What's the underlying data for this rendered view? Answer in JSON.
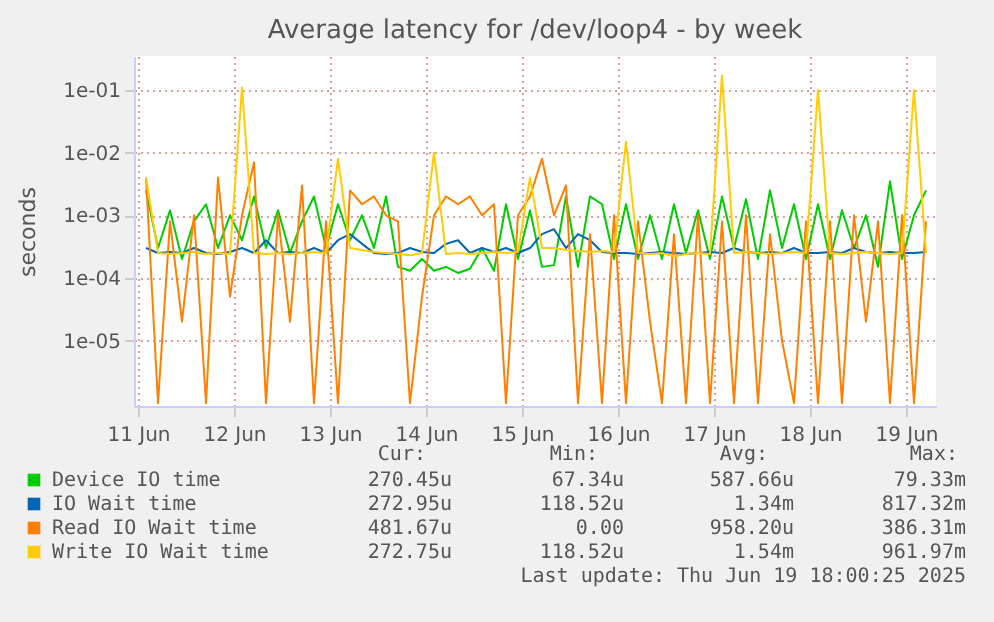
{
  "chart_data": {
    "type": "line",
    "title": "Average latency for /dev/loop4 - by week",
    "ylabel": "seconds",
    "log": true,
    "grid": true,
    "legend": "bottom",
    "line_style": "solid",
    "xlim": [
      "2025-06-11T11:00",
      "2025-06-19T19:30"
    ],
    "xticks": [
      {
        "value": "2025-06-11T12:00",
        "label": "11 Jun"
      },
      {
        "value": "2025-06-12T12:00",
        "label": "12 Jun"
      },
      {
        "value": "2025-06-13T12:00",
        "label": "13 Jun"
      },
      {
        "value": "2025-06-14T12:00",
        "label": "14 Jun"
      },
      {
        "value": "2025-06-15T12:00",
        "label": "15 Jun"
      },
      {
        "value": "2025-06-16T12:00",
        "label": "16 Jun"
      },
      {
        "value": "2025-06-17T12:00",
        "label": "17 Jun"
      },
      {
        "value": "2025-06-18T12:00",
        "label": "18 Jun"
      },
      {
        "value": "2025-06-19T12:00",
        "label": "19 Jun"
      }
    ],
    "ylim": [
      9e-07,
      0.35
    ],
    "yticks": [
      {
        "value": 1e-05,
        "label": "1e-05"
      },
      {
        "value": 0.0001,
        "label": "1e-04"
      },
      {
        "value": 0.001,
        "label": "1e-03"
      },
      {
        "value": 0.01,
        "label": "1e-02"
      },
      {
        "value": 0.1,
        "label": "1e-01"
      }
    ],
    "x": [
      "2025-06-11T14:00",
      "2025-06-11T17:00",
      "2025-06-11T20:00",
      "2025-06-11T23:00",
      "2025-06-12T02:00",
      "2025-06-12T05:00",
      "2025-06-12T08:00",
      "2025-06-12T11:00",
      "2025-06-12T14:00",
      "2025-06-12T17:00",
      "2025-06-12T20:00",
      "2025-06-12T23:00",
      "2025-06-13T02:00",
      "2025-06-13T05:00",
      "2025-06-13T08:00",
      "2025-06-13T11:00",
      "2025-06-13T14:00",
      "2025-06-13T17:00",
      "2025-06-13T20:00",
      "2025-06-13T23:00",
      "2025-06-14T02:00",
      "2025-06-14T05:00",
      "2025-06-14T08:00",
      "2025-06-14T11:00",
      "2025-06-14T14:00",
      "2025-06-14T17:00",
      "2025-06-14T20:00",
      "2025-06-14T23:00",
      "2025-06-15T02:00",
      "2025-06-15T05:00",
      "2025-06-15T08:00",
      "2025-06-15T11:00",
      "2025-06-15T14:00",
      "2025-06-15T17:00",
      "2025-06-15T20:00",
      "2025-06-15T23:00",
      "2025-06-16T02:00",
      "2025-06-16T05:00",
      "2025-06-16T08:00",
      "2025-06-16T11:00",
      "2025-06-16T14:00",
      "2025-06-16T17:00",
      "2025-06-16T20:00",
      "2025-06-16T23:00",
      "2025-06-17T02:00",
      "2025-06-17T05:00",
      "2025-06-17T08:00",
      "2025-06-17T11:00",
      "2025-06-17T14:00",
      "2025-06-17T17:00",
      "2025-06-17T20:00",
      "2025-06-17T23:00",
      "2025-06-18T02:00",
      "2025-06-18T05:00",
      "2025-06-18T08:00",
      "2025-06-18T11:00",
      "2025-06-18T14:00",
      "2025-06-18T17:00",
      "2025-06-18T20:00",
      "2025-06-18T23:00",
      "2025-06-19T02:00",
      "2025-06-19T05:00",
      "2025-06-19T08:00",
      "2025-06-19T11:00",
      "2025-06-19T14:00",
      "2025-06-19T17:00"
    ],
    "series": [
      {
        "name": "Device IO time",
        "color": "#00cc00",
        "values": [
          0.0025,
          0.0003,
          0.0012,
          0.0002,
          0.0008,
          0.0015,
          0.0003,
          0.001,
          0.0004,
          0.002,
          0.0003,
          0.0012,
          0.00025,
          0.0008,
          0.002,
          0.0003,
          0.0015,
          0.0004,
          0.001,
          0.0003,
          0.002,
          0.00015,
          0.00013,
          0.0002,
          0.00013,
          0.00015,
          0.00012,
          0.00014,
          0.0003,
          0.00013,
          0.0015,
          0.0002,
          0.0012,
          0.00015,
          0.00016,
          0.002,
          0.00015,
          0.002,
          0.0015,
          0.0002,
          0.0015,
          0.0002,
          0.001,
          0.0002,
          0.0015,
          0.00025,
          0.0012,
          0.0002,
          0.002,
          0.0003,
          0.0018,
          0.0002,
          0.0025,
          0.0003,
          0.0015,
          0.0002,
          0.0015,
          0.0002,
          0.0012,
          0.0003,
          0.001,
          0.00015,
          0.0035,
          0.0002,
          0.001,
          0.0025
        ]
      },
      {
        "name": "IO Wait time",
        "color": "#0066b3",
        "values": [
          0.0003,
          0.00025,
          0.00026,
          0.00025,
          0.0003,
          0.00025,
          0.00024,
          0.00026,
          0.0003,
          0.00025,
          0.0004,
          0.00025,
          0.00026,
          0.00025,
          0.0003,
          0.00025,
          0.0004,
          0.0005,
          0.00035,
          0.00025,
          0.00024,
          0.00025,
          0.0003,
          0.00026,
          0.00025,
          0.00035,
          0.0004,
          0.00025,
          0.0003,
          0.00026,
          0.0003,
          0.00025,
          0.0003,
          0.0005,
          0.0006,
          0.0003,
          0.0005,
          0.0004,
          0.00026,
          0.00025,
          0.00025,
          0.00024,
          0.00025,
          0.00026,
          0.00025,
          0.00024,
          0.00025,
          0.00026,
          0.00025,
          0.0003,
          0.00026,
          0.00025,
          0.00026,
          0.00025,
          0.0003,
          0.00025,
          0.00025,
          0.00026,
          0.00025,
          0.0003,
          0.00026,
          0.00025,
          0.00026,
          0.00025,
          0.00025,
          0.00026
        ]
      },
      {
        "name": "Read IO Wait time",
        "color": "#ff8000",
        "values": [
          0.004,
          1e-06,
          0.0008,
          2e-05,
          0.001,
          1e-06,
          0.004,
          5e-05,
          0.001,
          0.007,
          1e-06,
          0.001,
          2e-05,
          0.003,
          1e-06,
          0.0008,
          1e-06,
          0.0025,
          0.0015,
          0.002,
          0.001,
          0.0008,
          1e-06,
          5e-05,
          0.001,
          0.002,
          0.0015,
          0.002,
          0.001,
          0.0015,
          1e-06,
          0.001,
          0.002,
          0.008,
          0.001,
          0.003,
          1e-06,
          0.0005,
          1e-06,
          0.001,
          1e-06,
          0.0008,
          2e-05,
          1e-06,
          0.0005,
          1e-06,
          0.001,
          1e-06,
          0.0008,
          1e-06,
          0.001,
          1e-06,
          0.0005,
          1e-05,
          1e-06,
          0.0008,
          1e-06,
          0.0008,
          1e-06,
          0.001,
          2e-05,
          0.0008,
          1e-06,
          0.001,
          1e-06,
          0.0008
        ]
      },
      {
        "name": "Write IO Wait time",
        "color": "#ffcc00",
        "values": [
          0.004,
          0.00025,
          0.00024,
          0.00025,
          0.00026,
          0.00024,
          0.00025,
          0.00024,
          0.11,
          0.00025,
          0.00024,
          0.00025,
          0.00024,
          0.00025,
          0.00026,
          0.00025,
          0.008,
          0.0003,
          0.00028,
          0.00026,
          0.00025,
          0.00024,
          0.00023,
          0.00025,
          0.01,
          0.00024,
          0.00025,
          0.00024,
          0.00025,
          0.00026,
          0.00025,
          0.00026,
          0.004,
          0.0003,
          0.0003,
          0.00028,
          0.00027,
          0.00026,
          0.00027,
          0.00026,
          0.015,
          0.00025,
          0.00024,
          0.00025,
          0.00022,
          0.00024,
          0.00025,
          0.00024,
          0.17,
          0.00025,
          0.00026,
          0.00025,
          0.00024,
          0.00025,
          0.00026,
          0.00025,
          0.1,
          0.00025,
          0.00024,
          0.00025,
          0.00026,
          0.00025,
          0.00024,
          0.00025,
          0.1,
          0.00025
        ]
      }
    ],
    "annotations": [
      "Cur:",
      "Min:",
      "Avg:",
      "Max:",
      "270.45u",
      "67.34u",
      "587.66u",
      "79.33m",
      "272.95u",
      "118.52u",
      "1.34m",
      "817.32m",
      "481.67u",
      "0.00",
      "958.20u",
      "386.31m",
      "272.75u",
      "118.52u",
      "1.54m",
      "961.97m",
      "Last update: Thu Jun 19 18:00:25 2025"
    ]
  }
}
